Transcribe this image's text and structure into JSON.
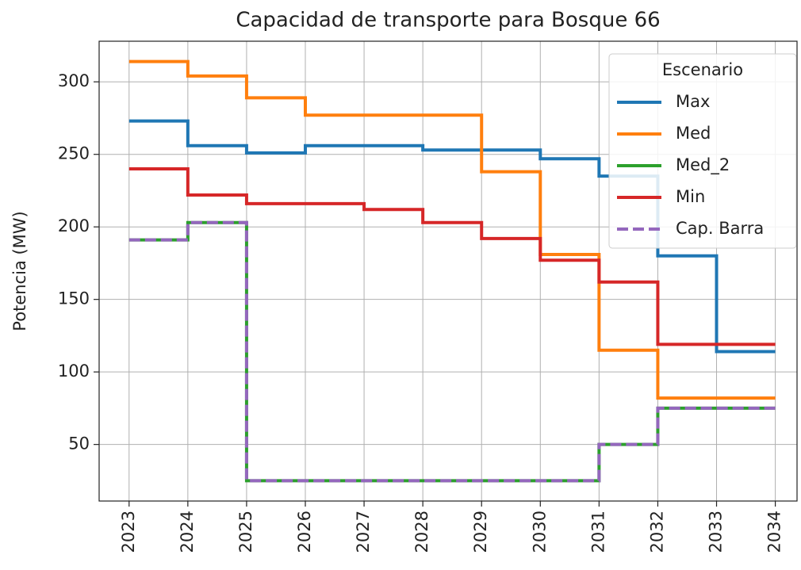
{
  "chart_data": {
    "type": "line",
    "drawstyle": "steps-post",
    "title": "Capacidad de transporte para Bosque 66",
    "y_label": "Potencia (MW)",
    "x": [
      2023,
      2024,
      2025,
      2026,
      2027,
      2028,
      2029,
      2030,
      2031,
      2032,
      2033,
      2034
    ],
    "xlim": [
      2022.49,
      2034.37
    ],
    "xticks": [
      2023,
      2024,
      2025,
      2026,
      2027,
      2028,
      2029,
      2030,
      2031,
      2032,
      2033,
      2034
    ],
    "ylim": [
      11,
      328
    ],
    "yticks": [
      50,
      100,
      150,
      200,
      250,
      300
    ],
    "grid": true,
    "legend": "upper right",
    "legend_title": "Escenario",
    "series": [
      {
        "name": "Max",
        "color": "#1f77b4",
        "linestyle": "solid",
        "values": [
          273,
          256,
          251,
          256,
          256,
          253,
          253,
          247,
          235,
          180,
          114,
          114
        ]
      },
      {
        "name": "Med",
        "color": "#ff7f0e",
        "linestyle": "solid",
        "values": [
          314,
          304,
          289,
          277,
          277,
          277,
          238,
          181,
          115,
          82,
          82,
          82
        ]
      },
      {
        "name": "Med_2",
        "color": "#2ca02c",
        "linestyle": "solid",
        "values": [
          191,
          203,
          25,
          25,
          25,
          25,
          25,
          25,
          50,
          75,
          75,
          75
        ]
      },
      {
        "name": "Min",
        "color": "#d62728",
        "linestyle": "solid",
        "values": [
          240,
          222,
          216,
          216,
          212,
          203,
          192,
          177,
          162,
          119,
          119,
          119
        ]
      },
      {
        "name": "Cap. Barra",
        "color": "#9467bd",
        "linestyle": "dashed",
        "values": [
          191,
          203,
          25,
          25,
          25,
          25,
          25,
          25,
          50,
          75,
          75,
          75
        ]
      }
    ]
  }
}
